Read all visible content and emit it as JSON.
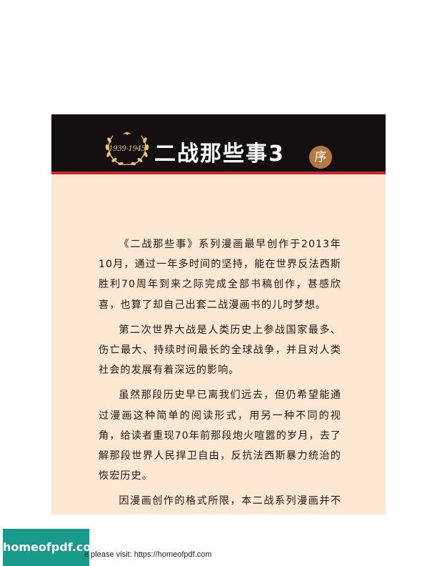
{
  "header": {
    "emblem_years": "1939-1945",
    "title": "二战那些事3",
    "badge": "序"
  },
  "preface": {
    "paragraphs": [
      "《二战那些事》系列漫画最早创作于2013年10月，通过一年多时间的坚持，能在世界反法西斯胜利70周年到来之际完成全部书稿创作，甚感欣喜，也算了却自己出套二战漫画书的儿时梦想。",
      "第二次世界大战是人类历史上参战国家最多、伤亡最大、持续时间最长的全球战争，并且对人类社会的发展有着深远的影响。",
      "虽然那段历史早已离我们远去，但仍希望能通过漫画这种简单的阅读形式，用另一种不同的视角，给读者重现70年前那段炮火喧嚣的岁月，去了解那段世界人民捍卫自由，反抗法西斯暴力统治的恢宏历史。",
      "因漫画创作的格式所限，本二战系列漫画并不能完全收录全部二战历史故事，如有不足之处，望"
    ]
  },
  "footer": {
    "logo_text": "homeofpdf.com",
    "note": "e please visit: https://homeofpdf.com"
  },
  "colors": {
    "header_bg": "#141011",
    "stripe": "#c8272d",
    "page_bg": "#fde9d3",
    "badge_bg": "#b3793f",
    "emblem_gold": "#e8c66b",
    "logo_bg": "#1a9a8b"
  }
}
